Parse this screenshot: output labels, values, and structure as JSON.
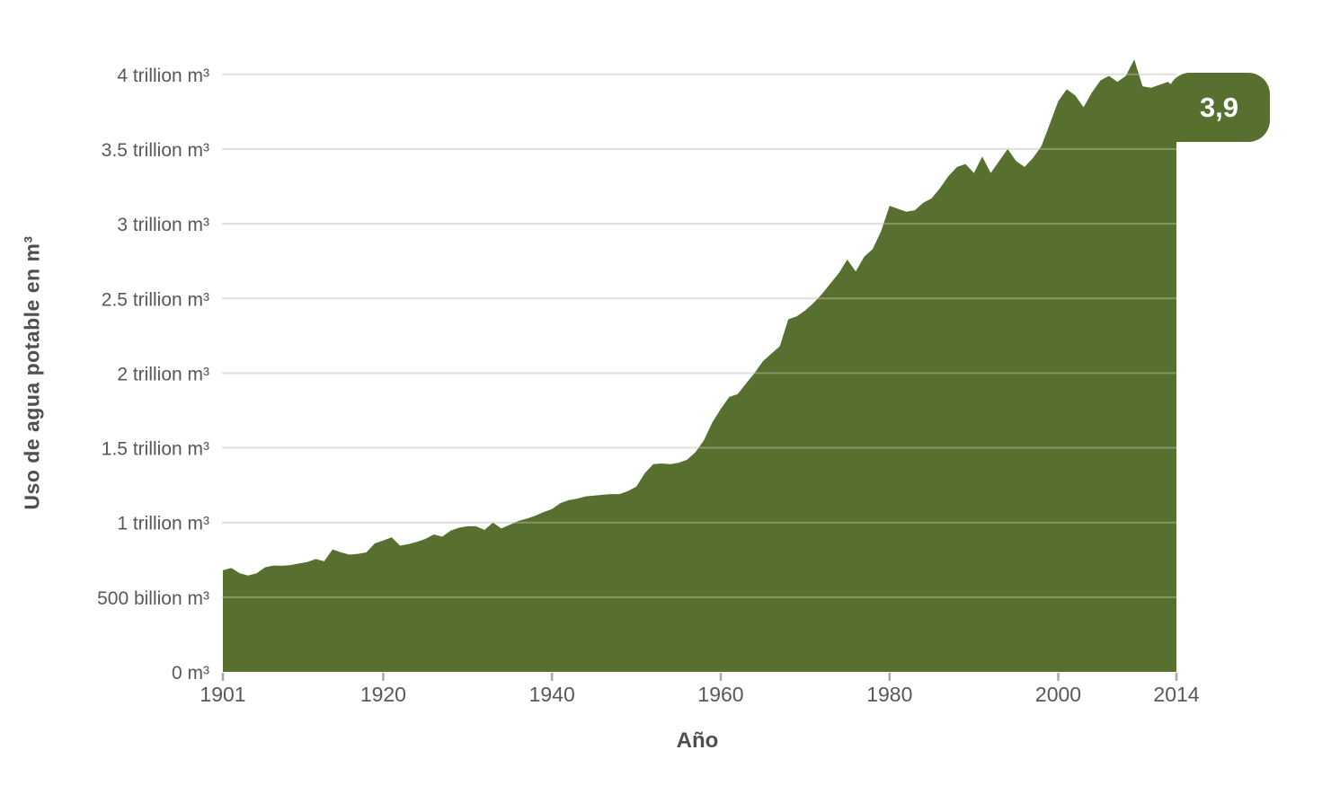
{
  "chart_data": {
    "type": "area",
    "title": "",
    "xlabel": "Año",
    "ylabel": "Uso de agua potable en m³",
    "x_range": [
      1901,
      2014
    ],
    "x_step": 1,
    "ylim": [
      0,
      4.2
    ],
    "grid": true,
    "legend": "none",
    "end_label": "3,9",
    "x_ticks": [
      1901,
      1920,
      1940,
      1960,
      1980,
      2000,
      2014
    ],
    "y_ticks": [
      {
        "value": 0,
        "label": "0 m³"
      },
      {
        "value": 0.5,
        "label": "500 billion m³"
      },
      {
        "value": 1,
        "label": "1 trillion m³"
      },
      {
        "value": 1.5,
        "label": "1.5 trillion m³"
      },
      {
        "value": 2,
        "label": "2 trillion m³"
      },
      {
        "value": 2.5,
        "label": "2.5 trillion m³"
      },
      {
        "value": 3,
        "label": "3 trillion m³"
      },
      {
        "value": 3.5,
        "label": "3.5 trillion m³"
      },
      {
        "value": 4,
        "label": "4 trillion m³"
      }
    ],
    "values_unit": "trillion m³ per year",
    "values": [
      0.68,
      0.695,
      0.66,
      0.645,
      0.66,
      0.7,
      0.712,
      0.71,
      0.715,
      0.725,
      0.735,
      0.755,
      0.74,
      0.82,
      0.8,
      0.785,
      0.79,
      0.8,
      0.86,
      0.88,
      0.9,
      0.845,
      0.855,
      0.87,
      0.89,
      0.92,
      0.905,
      0.945,
      0.965,
      0.975,
      0.975,
      0.95,
      1.0,
      0.96,
      0.985,
      1.01,
      1.025,
      1.045,
      1.07,
      1.09,
      1.13,
      1.15,
      1.16,
      1.175,
      1.18,
      1.185,
      1.19,
      1.19,
      1.21,
      1.24,
      1.33,
      1.39,
      1.395,
      1.39,
      1.4,
      1.42,
      1.47,
      1.55,
      1.67,
      1.76,
      1.84,
      1.86,
      1.93,
      2.0,
      2.08,
      2.13,
      2.18,
      2.36,
      2.38,
      2.42,
      2.47,
      2.53,
      2.6,
      2.67,
      2.76,
      2.68,
      2.78,
      2.83,
      2.95,
      3.12,
      3.1,
      3.08,
      3.09,
      3.14,
      3.17,
      3.24,
      3.32,
      3.38,
      3.4,
      3.34,
      3.45,
      3.34,
      3.42,
      3.5,
      3.42,
      3.38,
      3.44,
      3.52,
      3.67,
      3.82,
      3.9,
      3.86,
      3.78,
      3.88,
      3.96,
      3.99,
      3.95,
      3.99,
      4.1,
      3.92,
      3.91,
      3.93,
      3.95,
      3.9
    ],
    "colors": {
      "area": "#57702F",
      "grid": "#d4d4d4",
      "grid_overlay": "rgba(255,255,255,0.28)",
      "tick_mark": "#a8a8a8",
      "tick_text": "#58585a",
      "axis_title": "#4f4f4f",
      "badge_bg": "#57702F",
      "badge_text": "#ffffff"
    }
  }
}
